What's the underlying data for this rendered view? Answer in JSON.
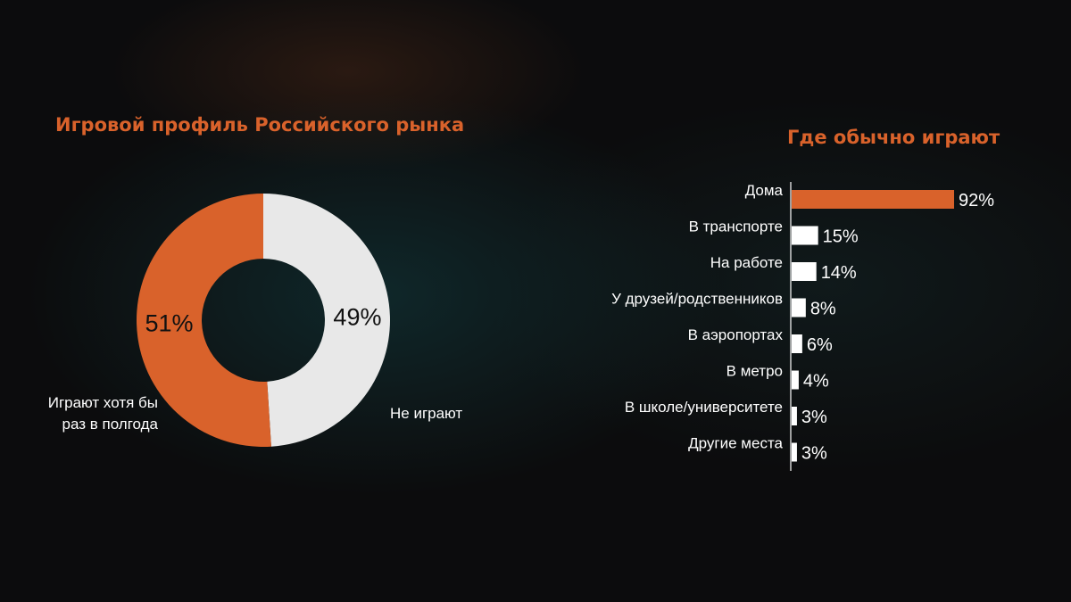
{
  "chart_data": [
    {
      "type": "pie",
      "title": "Игровой профиль Российского рынка",
      "slices": [
        {
          "label_line1": "Играют хотя бы",
          "label_line2": "раз в полгода",
          "value": 51,
          "value_label": "51%",
          "color": "#d9622b"
        },
        {
          "label": "Не играют",
          "value": 49,
          "value_label": "49%",
          "color": "#e8e8e8"
        }
      ]
    },
    {
      "type": "bar",
      "orientation": "horizontal",
      "title": "Где обычно играют",
      "categories": [
        "Дома",
        "В транспорте",
        "На работе",
        "У друзей/родственников",
        "В  аэропортах",
        "В метро",
        "В школе/университете",
        "Другие места"
      ],
      "values": [
        92,
        15,
        14,
        8,
        6,
        4,
        3,
        3
      ],
      "value_labels": [
        "92%",
        "15%",
        "14%",
        "8%",
        "6%",
        "4%",
        "3%",
        "3%"
      ],
      "colors": [
        "#d9622b",
        "#ffffff",
        "#ffffff",
        "#ffffff",
        "#ffffff",
        "#ffffff",
        "#ffffff",
        "#ffffff"
      ],
      "xlim": [
        0,
        92
      ]
    }
  ]
}
